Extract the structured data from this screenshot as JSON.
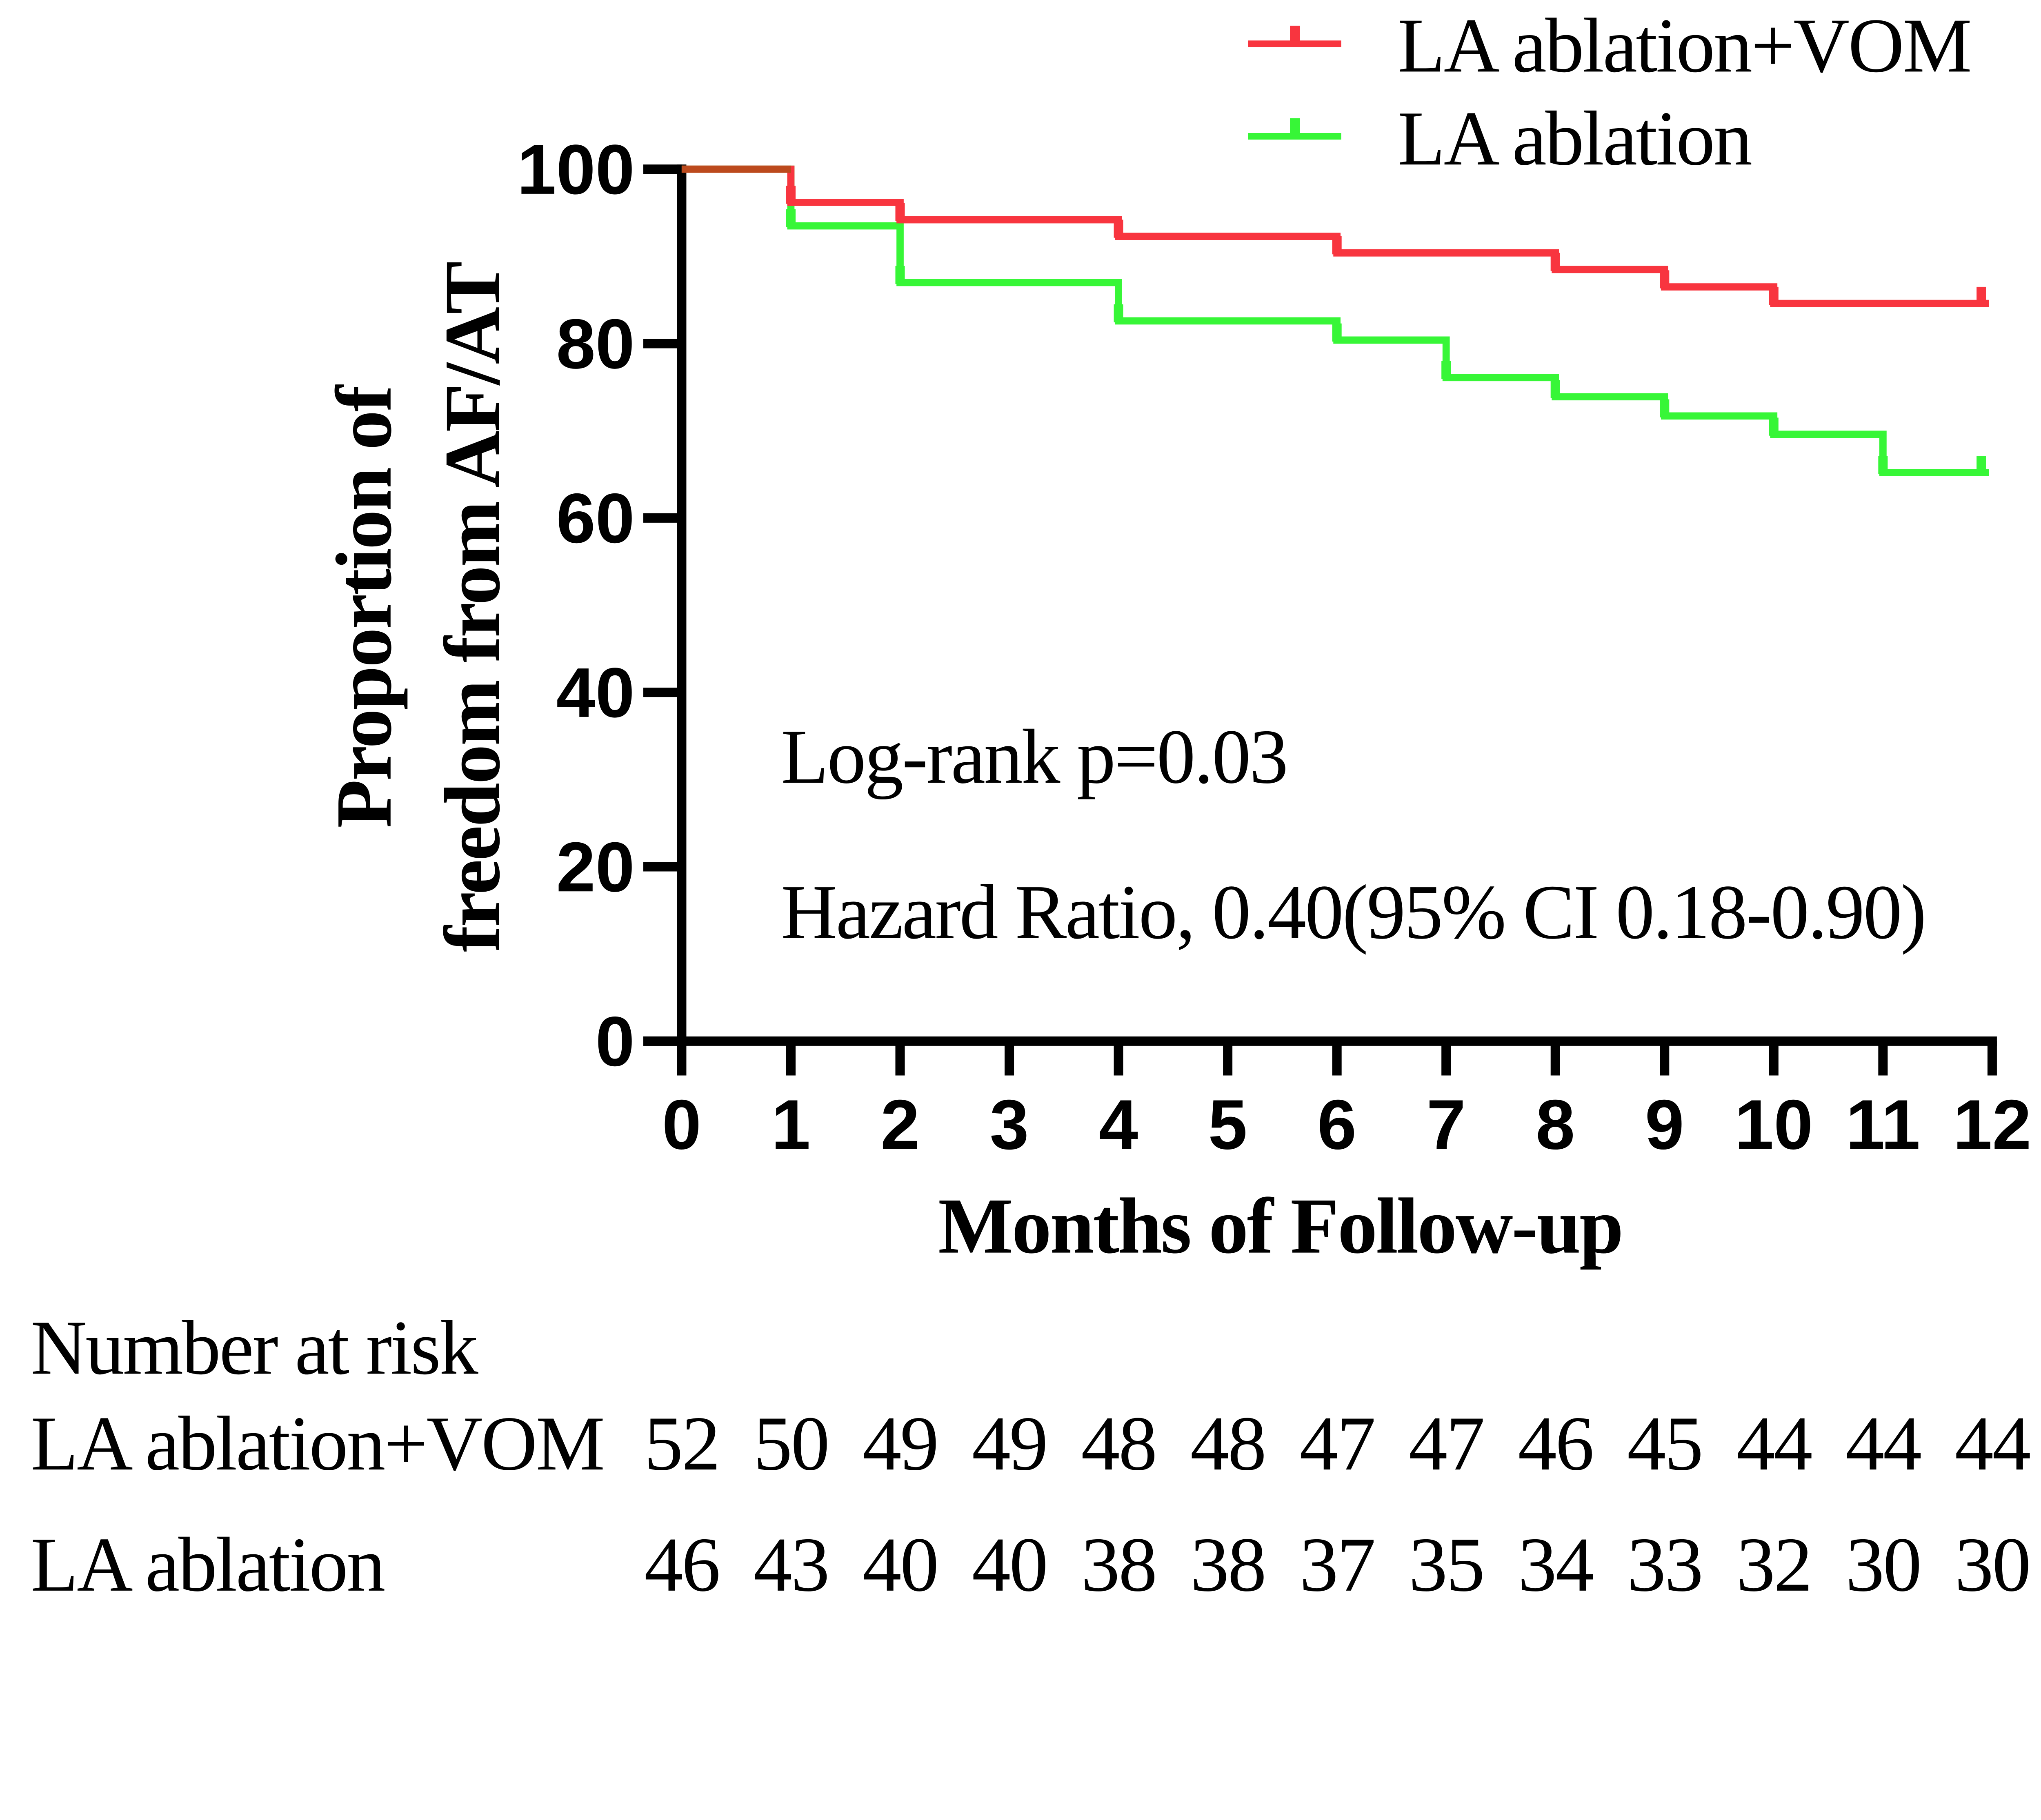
{
  "figure": {
    "legend": {
      "items": [
        {
          "label": "LA ablation+VOM",
          "color": "#F8353F",
          "symbol": "censor-tick-line"
        },
        {
          "label": "LA ablation",
          "color": "#37F637",
          "symbol": "censor-tick-line"
        }
      ]
    },
    "annotations": {
      "logrank": "Log-rank p=0.03",
      "hazard": "Hazard Ratio, 0.40(95% CI 0.18-0.90)"
    },
    "x_axis": {
      "title": "Months of Follow-up"
    },
    "y_axis": {
      "title_line1": "Proportion of",
      "title_line2": "freedom from AF/AT"
    },
    "risk_table": {
      "header": "Number at risk",
      "rows": [
        {
          "label": "LA ablation+VOM",
          "values": [
            52,
            50,
            49,
            49,
            48,
            48,
            47,
            47,
            46,
            45,
            44,
            44,
            44
          ]
        },
        {
          "label": "LA ablation",
          "values": [
            46,
            43,
            40,
            40,
            38,
            38,
            37,
            35,
            34,
            33,
            32,
            30,
            30
          ]
        }
      ]
    }
  },
  "chart_data": {
    "type": "line",
    "subtype": "kaplan-meier-step",
    "title": "",
    "xlabel": "Months of Follow-up",
    "ylabel": "Proportion of freedom from AF/AT",
    "xlim": [
      0,
      12
    ],
    "ylim": [
      0,
      100
    ],
    "x_ticks": [
      0,
      1,
      2,
      3,
      4,
      5,
      6,
      7,
      8,
      9,
      10,
      11,
      12
    ],
    "y_ticks": [
      0,
      20,
      40,
      60,
      80,
      100
    ],
    "grid": false,
    "legend_position": "top-right",
    "series": [
      {
        "name": "LA ablation+VOM",
        "color": "#F8353F",
        "steps": [
          [
            0,
            100
          ],
          [
            1,
            96.2
          ],
          [
            2,
            94.2
          ],
          [
            4,
            92.3
          ],
          [
            6,
            90.4
          ],
          [
            8,
            88.5
          ],
          [
            9,
            86.5
          ],
          [
            10,
            84.6
          ]
        ],
        "end_time": 11.97,
        "censor_marks": [
          [
            1,
            96.2
          ],
          [
            2,
            94.2
          ],
          [
            4,
            92.3
          ],
          [
            6,
            90.4
          ],
          [
            8,
            88.5
          ],
          [
            9,
            86.5
          ],
          [
            10,
            84.6
          ],
          [
            11.9,
            84.6
          ]
        ]
      },
      {
        "name": "LA ablation",
        "color": "#37F637",
        "steps": [
          [
            0,
            100
          ],
          [
            1,
            93.5
          ],
          [
            2,
            87.0
          ],
          [
            4,
            82.6
          ],
          [
            6,
            80.4
          ],
          [
            7,
            76.1
          ],
          [
            8,
            73.9
          ],
          [
            9,
            71.7
          ],
          [
            10,
            69.6
          ],
          [
            11,
            65.2
          ]
        ],
        "end_time": 11.97,
        "censor_marks": [
          [
            1,
            93.5
          ],
          [
            2,
            87.0
          ],
          [
            4,
            82.6
          ],
          [
            6,
            80.4
          ],
          [
            7,
            76.1
          ],
          [
            8,
            73.9
          ],
          [
            9,
            71.7
          ],
          [
            10,
            69.6
          ],
          [
            11,
            65.2
          ],
          [
            11.9,
            65.2
          ]
        ]
      }
    ],
    "overlap_segment": {
      "from": 0,
      "to": 1,
      "level": 100,
      "color": "#BC4A1D"
    },
    "number_at_risk": {
      "months": [
        0,
        1,
        2,
        3,
        4,
        5,
        6,
        7,
        8,
        9,
        10,
        11,
        12
      ],
      "LA ablation+VOM": [
        52,
        50,
        49,
        49,
        48,
        48,
        47,
        47,
        46,
        45,
        44,
        44,
        44
      ],
      "LA ablation": [
        46,
        43,
        40,
        40,
        38,
        38,
        37,
        35,
        34,
        33,
        32,
        30,
        30
      ]
    }
  }
}
